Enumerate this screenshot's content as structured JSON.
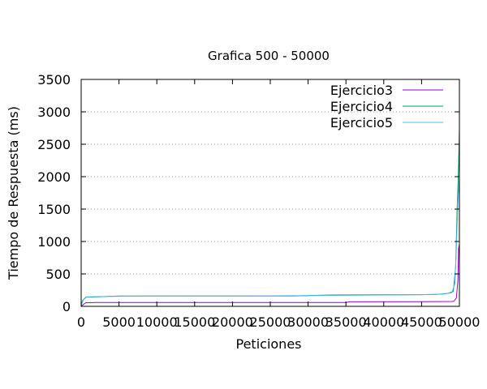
{
  "chart_data": {
    "type": "line",
    "title": "Grafica 500 - 50000",
    "xlabel": "Peticiones",
    "ylabel": "Tiempo de Respuesta (ms)",
    "xlim": [
      0,
      50000
    ],
    "ylim": [
      0,
      3500
    ],
    "xticks": [
      0,
      5000,
      10000,
      15000,
      20000,
      25000,
      30000,
      35000,
      40000,
      45000,
      50000
    ],
    "yticks": [
      0,
      500,
      1000,
      1500,
      2000,
      2500,
      3000,
      3500
    ],
    "grid": "horizontal-dotted",
    "legend_position": "top-right",
    "series": [
      {
        "name": "Ejercicio3",
        "color": "#9400d3",
        "points": [
          [
            0,
            0
          ],
          [
            300,
            30
          ],
          [
            600,
            55
          ],
          [
            2000,
            60
          ],
          [
            10000,
            60
          ],
          [
            20000,
            60
          ],
          [
            30000,
            60
          ],
          [
            35000,
            60
          ],
          [
            35500,
            70
          ],
          [
            45000,
            72
          ],
          [
            49000,
            75
          ],
          [
            49300,
            80
          ],
          [
            49600,
            130
          ],
          [
            49800,
            400
          ],
          [
            49900,
            900
          ],
          [
            50000,
            950
          ]
        ]
      },
      {
        "name": "Ejercicio4",
        "color": "#009e73",
        "points": [
          [
            0,
            20
          ],
          [
            200,
            90
          ],
          [
            600,
            140
          ],
          [
            2000,
            145
          ],
          [
            5000,
            160
          ],
          [
            10000,
            160
          ],
          [
            20000,
            160
          ],
          [
            28000,
            160
          ],
          [
            33000,
            175
          ],
          [
            40000,
            180
          ],
          [
            45000,
            180
          ],
          [
            47000,
            185
          ],
          [
            48500,
            200
          ],
          [
            49200,
            230
          ],
          [
            49500,
            600
          ],
          [
            49700,
            1500
          ],
          [
            49900,
            2200
          ],
          [
            50000,
            2750
          ]
        ]
      },
      {
        "name": "Ejercicio5",
        "color": "#56b4e9",
        "points": [
          [
            0,
            10
          ],
          [
            300,
            100
          ],
          [
            700,
            145
          ],
          [
            2000,
            150
          ],
          [
            5000,
            155
          ],
          [
            10000,
            160
          ],
          [
            20000,
            160
          ],
          [
            30000,
            165
          ],
          [
            40000,
            175
          ],
          [
            45000,
            180
          ],
          [
            48000,
            190
          ],
          [
            49000,
            210
          ],
          [
            49400,
            350
          ],
          [
            49600,
            900
          ],
          [
            49800,
            1600
          ],
          [
            50000,
            2000
          ]
        ]
      }
    ]
  }
}
